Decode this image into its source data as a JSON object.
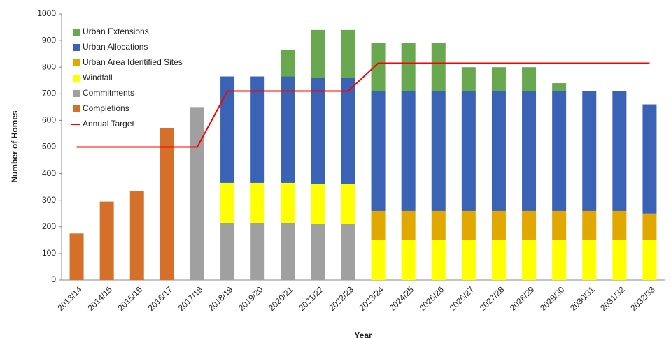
{
  "chart_data": {
    "type": "bar",
    "stacked": true,
    "x_label": "Year",
    "y_label": "Number of Homes",
    "categories": [
      "2013/14",
      "2014/15",
      "2015/16",
      "2016/17",
      "2017/18",
      "2018/19",
      "2019/20",
      "2020/21",
      "2021/22",
      "2022/23",
      "2023/24",
      "2024/25",
      "2025/26",
      "2026/27",
      "2027/28",
      "2028/29",
      "2029/30",
      "2030/31",
      "2031/32",
      "2032/33"
    ],
    "series": [
      {
        "name": "Completions",
        "color": "#d4702a",
        "values": [
          175,
          295,
          335,
          570,
          null,
          null,
          null,
          null,
          null,
          null,
          null,
          null,
          null,
          null,
          null,
          null,
          null,
          null,
          null,
          null
        ]
      },
      {
        "name": "Commitments",
        "color": "#a0a0a0",
        "values": [
          null,
          null,
          null,
          null,
          650,
          215,
          215,
          215,
          210,
          210,
          null,
          null,
          null,
          null,
          null,
          null,
          null,
          null,
          null,
          null
        ]
      },
      {
        "name": "Windfall",
        "color": "#ffff00",
        "values": [
          null,
          null,
          null,
          null,
          null,
          150,
          150,
          150,
          150,
          150,
          150,
          150,
          150,
          150,
          150,
          150,
          150,
          150,
          150,
          150
        ]
      },
      {
        "name": "Urban Area Identified Sites",
        "color": "#e0a800",
        "values": [
          null,
          null,
          null,
          null,
          null,
          null,
          null,
          null,
          null,
          null,
          110,
          110,
          110,
          110,
          110,
          110,
          110,
          110,
          110,
          100
        ]
      },
      {
        "name": "Urban Allocations",
        "color": "#3a62b5",
        "values": [
          null,
          null,
          null,
          null,
          null,
          400,
          400,
          400,
          400,
          400,
          450,
          450,
          450,
          450,
          450,
          450,
          450,
          450,
          450,
          410
        ]
      },
      {
        "name": "Urban Extensions",
        "color": "#6aa84f",
        "values": [
          null,
          null,
          null,
          null,
          null,
          null,
          null,
          100,
          180,
          180,
          180,
          180,
          180,
          90,
          90,
          90,
          30,
          null,
          null,
          null
        ]
      },
      {
        "name": "Annual Target",
        "color": "#ff0000",
        "type": "line",
        "values": [
          500,
          500,
          500,
          500,
          500,
          710,
          710,
          710,
          710,
          710,
          815,
          815,
          815,
          815,
          815,
          815,
          815,
          815,
          815,
          815
        ]
      }
    ],
    "ylim": [
      0,
      1000
    ],
    "yticks": [
      0,
      100,
      200,
      300,
      400,
      500,
      600,
      700,
      800,
      900,
      1000
    ],
    "grid": false
  }
}
